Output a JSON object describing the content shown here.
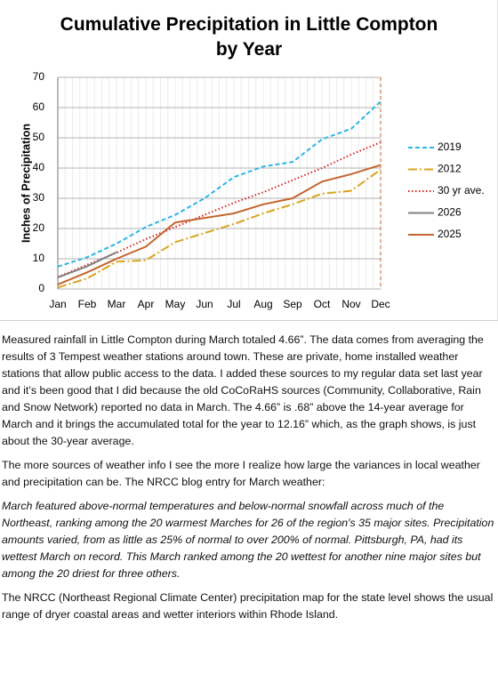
{
  "chart_data": {
    "type": "line",
    "title": "Cumulative Precipitation in Little Compton by Year",
    "y_label": "Inches of Precipitation",
    "categories": [
      "Jan",
      "Feb",
      "Mar",
      "Apr",
      "May",
      "Jun",
      "Jul",
      "Aug",
      "Sep",
      "Oct",
      "Nov",
      "Dec"
    ],
    "series": [
      {
        "name": "2019",
        "color": "#2fb4e6",
        "dash": "dashed",
        "values": [
          7.4,
          10.5,
          15,
          20.5,
          24.5,
          30,
          37,
          40.5,
          42,
          49.5,
          53,
          62
        ]
      },
      {
        "name": "2012",
        "color": "#d9a521",
        "dash": "dashdot",
        "values": [
          0.5,
          3.5,
          9,
          9.5,
          15.5,
          18.5,
          21.5,
          25,
          28,
          31.5,
          32.5,
          39.5
        ]
      },
      {
        "name": "30 yr ave.",
        "color": "#d42525",
        "dash": "dotted",
        "values": [
          4,
          8,
          12,
          16.5,
          20.5,
          24.5,
          28.5,
          32,
          36,
          40,
          44.5,
          48.5
        ]
      },
      {
        "name": "2026",
        "color": "#808080",
        "dash": "solid",
        "values": [
          3.8,
          7.5,
          12.16,
          null,
          null,
          null,
          null,
          null,
          null,
          null,
          null,
          null
        ]
      },
      {
        "name": "2025",
        "color": "#c4652f",
        "dash": "solid",
        "values": [
          1.5,
          5.5,
          10,
          14,
          22,
          23.5,
          25,
          28,
          30,
          35.5,
          38,
          41
        ]
      }
    ],
    "ylim": [
      0,
      70
    ],
    "yticks": [
      0,
      10,
      20,
      30,
      40,
      50,
      60,
      70
    ],
    "grid": true,
    "legend": "right"
  },
  "paragraphs": [
    "Measured rainfall in Little Compton during March totaled 4.66”. The data comes from averaging the results of 3 Tempest weather stations around town. These are private, home installed weather stations that allow public access to the data. I added these sources to my regular data set last year and it’s been good that I did because the old CoCoRaHS sources (Community, Collaborative, Rain and Snow Network) reported no data in March. The 4.66” is .68” above the 14-year average for March and it brings the accumulated total for the year to 12.16” which, as the graph shows, is just about the 30-year average.",
    "The more sources of weather info I see the more I realize how large the variances in local weather and precipitation can be. The NRCC blog entry for March weather:",
    "March featured above-normal temperatures and below-normal snowfall across much of the Northeast, ranking among the 20 warmest Marches for 26 of the region's 35 major sites. Precipitation amounts varied, from as little as 25% of normal to over 200% of normal. Pittsburgh, PA, had its wettest March on record. This March ranked among the 20 wettest for another nine major sites but among the 20 driest for three others.",
    "The NRCC (Northeast Regional Climate Center) precipitation map for the state level shows the usual range of dryer coastal areas and wetter interiors within Rhode Island."
  ]
}
